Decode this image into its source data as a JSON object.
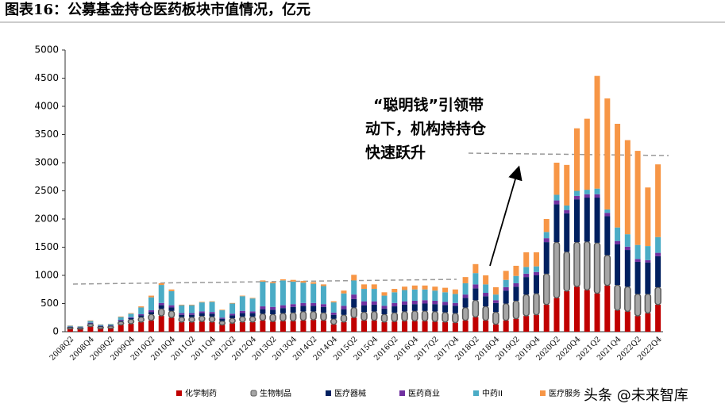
{
  "chart_data": {
    "type": "stacked_bar",
    "title": "图表16：公募基金持仓医药板块市值情况，亿元",
    "annotation": [
      "“聪明钱”引领带",
      "动下，机构持持仓",
      "快速跃升"
    ],
    "watermark": "头条 @未来智库",
    "categories": [
      "2008Q2",
      null,
      "2008Q4",
      null,
      "2009Q2",
      null,
      "2009Q4",
      null,
      "2010Q2",
      null,
      "2010Q4",
      null,
      "2011Q2",
      null,
      "2011Q4",
      null,
      "2012Q2",
      null,
      "2012Q4",
      null,
      "2013Q2",
      null,
      "2013Q4",
      null,
      "2014Q2",
      null,
      "2014Q4",
      null,
      "2015Q2",
      null,
      "2015Q4",
      null,
      "2016Q2",
      null,
      "2016Q4",
      null,
      "2017Q2",
      null,
      "2017Q4",
      null,
      "2018Q2",
      null,
      "2018Q4",
      null,
      "2019Q2",
      null,
      "2019Q4",
      null,
      "2020Q2",
      null,
      "2020Q4",
      null,
      "2021Q2",
      null,
      "2021Q4",
      null,
      "2022Q2",
      null,
      "2022Q4"
    ],
    "series": [
      {
        "name": "化学制药",
        "color": "#c00000",
        "values": [
          50,
          45,
          90,
          55,
          60,
          120,
          140,
          170,
          200,
          280,
          250,
          170,
          170,
          180,
          170,
          120,
          150,
          170,
          170,
          200,
          180,
          190,
          190,
          200,
          210,
          200,
          130,
          170,
          250,
          200,
          200,
          170,
          180,
          190,
          190,
          190,
          180,
          170,
          160,
          200,
          260,
          200,
          130,
          200,
          230,
          280,
          300,
          480,
          600,
          720,
          800,
          740,
          680,
          820,
          380,
          360,
          280,
          330,
          480
        ]
      },
      {
        "name": "生物制品",
        "color": "#a6a6a6",
        "values": [
          30,
          25,
          50,
          35,
          40,
          60,
          80,
          90,
          110,
          130,
          120,
          90,
          90,
          100,
          100,
          70,
          90,
          100,
          100,
          120,
          130,
          140,
          150,
          160,
          150,
          140,
          100,
          130,
          180,
          150,
          160,
          140,
          160,
          170,
          180,
          180,
          180,
          175,
          170,
          230,
          300,
          250,
          220,
          300,
          320,
          380,
          380,
          550,
          990,
          700,
          790,
          860,
          900,
          540,
          450,
          440,
          390,
          340,
          310
        ]
      },
      {
        "name": "医疗器械",
        "color": "#002060",
        "values": [
          5,
          5,
          10,
          8,
          8,
          15,
          20,
          30,
          40,
          60,
          60,
          40,
          40,
          50,
          50,
          40,
          50,
          60,
          60,
          80,
          80,
          90,
          100,
          100,
          100,
          100,
          70,
          100,
          150,
          120,
          120,
          100,
          110,
          120,
          120,
          130,
          130,
          130,
          130,
          170,
          210,
          180,
          160,
          230,
          250,
          310,
          320,
          560,
          670,
          680,
          760,
          780,
          800,
          690,
          720,
          650,
          570,
          560,
          550
        ]
      },
      {
        "name": "医药商业",
        "color": "#7030a0",
        "values": [
          5,
          5,
          10,
          7,
          7,
          15,
          15,
          20,
          30,
          40,
          40,
          30,
          30,
          30,
          30,
          20,
          30,
          40,
          30,
          50,
          50,
          50,
          50,
          50,
          50,
          50,
          40,
          60,
          80,
          70,
          60,
          50,
          60,
          60,
          60,
          60,
          60,
          55,
          50,
          60,
          70,
          60,
          50,
          60,
          60,
          60,
          60,
          70,
          70,
          60,
          60,
          60,
          60,
          60,
          60,
          60,
          50,
          40,
          60
        ]
      },
      {
        "name": "中药II",
        "color": "#4bacc6",
        "values": [
          15,
          15,
          30,
          20,
          20,
          50,
          65,
          120,
          230,
          320,
          250,
          140,
          140,
          160,
          180,
          130,
          180,
          260,
          230,
          440,
          420,
          440,
          400,
          360,
          340,
          320,
          180,
          220,
          250,
          220,
          220,
          180,
          190,
          200,
          200,
          190,
          180,
          170,
          160,
          200,
          200,
          150,
          100,
          130,
          130,
          120,
          100,
          110,
          100,
          80,
          90,
          80,
          100,
          60,
          240,
          220,
          250,
          250,
          280
        ]
      },
      {
        "name": "医疗服务",
        "color": "#f79646",
        "values": [
          5,
          5,
          10,
          5,
          5,
          10,
          10,
          20,
          30,
          30,
          30,
          10,
          10,
          10,
          10,
          10,
          10,
          10,
          10,
          20,
          20,
          20,
          30,
          30,
          30,
          30,
          20,
          50,
          100,
          80,
          80,
          60,
          60,
          60,
          70,
          70,
          70,
          80,
          80,
          110,
          160,
          160,
          130,
          160,
          180,
          260,
          250,
          230,
          570,
          720,
          1110,
          1260,
          2000,
          1970,
          1840,
          1670,
          1670,
          1040,
          1290
        ]
      }
    ],
    "ylim": [
      0,
      5000
    ],
    "yticks": [
      0,
      500,
      1000,
      1500,
      2000,
      2500,
      3000,
      3500,
      4000,
      4500,
      5000
    ]
  }
}
